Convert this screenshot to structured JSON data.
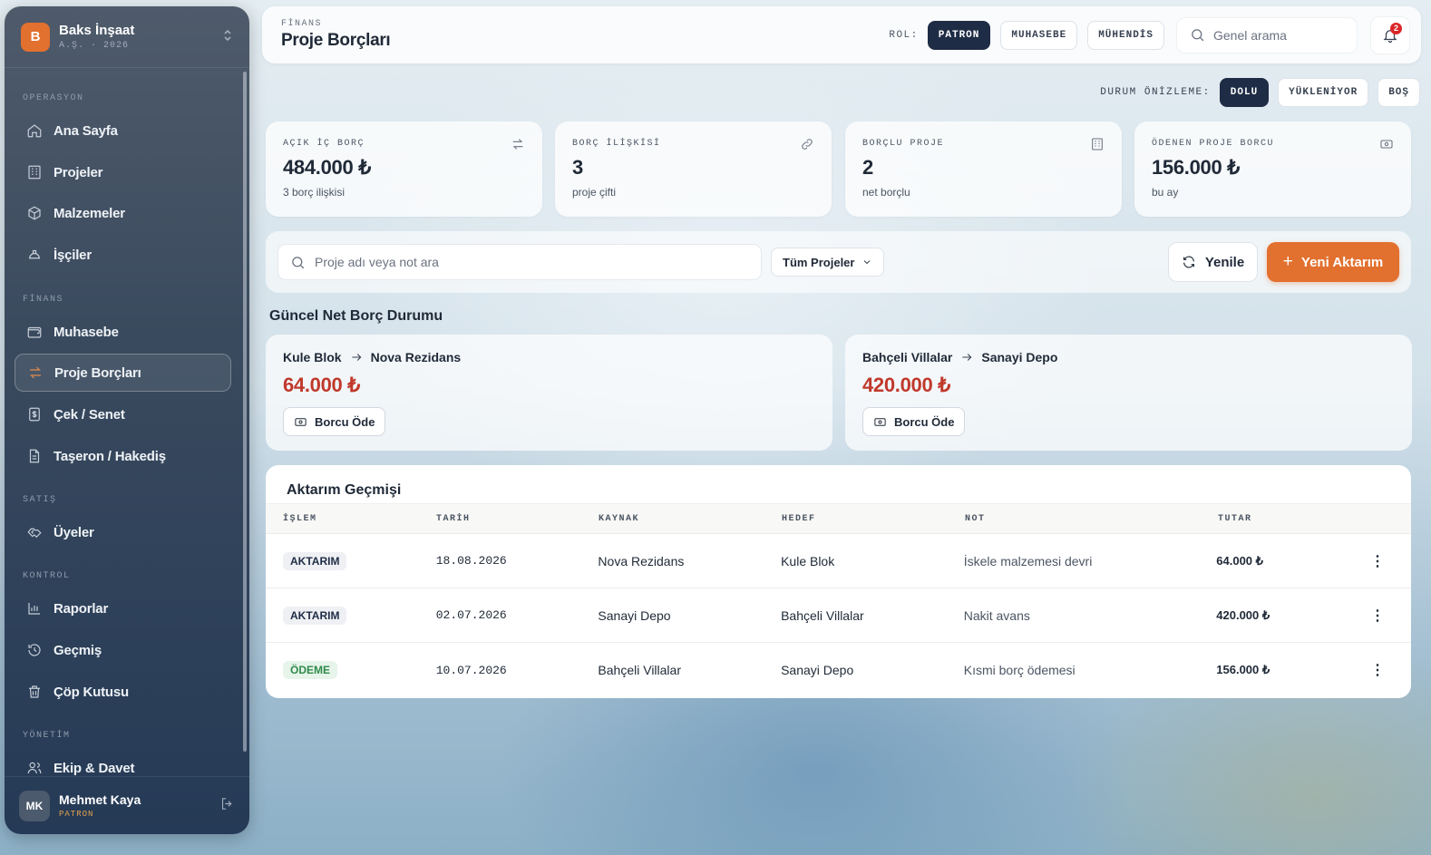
{
  "brand": {
    "initial": "B",
    "name": "Baks İnşaat",
    "sub": "A.Ş. · 2026"
  },
  "sidebar": {
    "sections": [
      {
        "title": "OPERASYON",
        "items": [
          {
            "label": "Ana Sayfa",
            "icon": "home-icon"
          },
          {
            "label": "Projeler",
            "icon": "building-icon"
          },
          {
            "label": "Malzemeler",
            "icon": "box-icon"
          },
          {
            "label": "İşçiler",
            "icon": "hardhat-icon"
          }
        ]
      },
      {
        "title": "FİNANS",
        "items": [
          {
            "label": "Muhasebe",
            "icon": "wallet-icon"
          },
          {
            "label": "Proje Borçları",
            "icon": "transfer-icon",
            "active": true
          },
          {
            "label": "Çek / Senet",
            "icon": "cheque-icon"
          },
          {
            "label": "Taşeron / Hakediş",
            "icon": "document-icon"
          }
        ]
      },
      {
        "title": "SATIŞ",
        "items": [
          {
            "label": "Üyeler",
            "icon": "handshake-icon"
          }
        ]
      },
      {
        "title": "KONTROL",
        "items": [
          {
            "label": "Raporlar",
            "icon": "chart-icon"
          },
          {
            "label": "Geçmiş",
            "icon": "history-icon"
          },
          {
            "label": "Çöp Kutusu",
            "icon": "trash-icon"
          }
        ]
      },
      {
        "title": "YÖNETİM",
        "items": [
          {
            "label": "Ekip & Davet",
            "icon": "users-icon"
          }
        ]
      }
    ]
  },
  "user": {
    "initials": "MK",
    "name": "Mehmet Kaya",
    "role": "PATRON"
  },
  "header": {
    "eyebrow": "FİNANS",
    "title": "Proje Borçları",
    "role_label": "ROL:",
    "roles": [
      "PATRON",
      "MUHASEBE",
      "MÜHENDİS"
    ],
    "search_placeholder": "Genel arama",
    "notification_count": "2"
  },
  "preview": {
    "label": "DURUM ÖNİZLEME:",
    "options": [
      "DOLU",
      "YÜKLENİYOR",
      "BOŞ"
    ]
  },
  "stats": [
    {
      "label": "AÇIK İÇ BORÇ",
      "value": "484.000 ₺",
      "sub": "3 borç ilişkisi",
      "icon": "transfer-icon"
    },
    {
      "label": "BORÇ İLİŞKİSİ",
      "value": "3",
      "sub": "proje çifti",
      "icon": "link-icon"
    },
    {
      "label": "BORÇLU PROJE",
      "value": "2",
      "sub": "net borçlu",
      "icon": "building-icon"
    },
    {
      "label": "ÖDENEN PROJE BORCU",
      "value": "156.000 ₺",
      "sub": "bu ay",
      "icon": "cash-icon"
    }
  ],
  "toolbar": {
    "search_placeholder": "Proje adı veya not ara",
    "filter": "Tüm Projeler",
    "refresh": "Yenile",
    "new_transfer": "Yeni Aktarım"
  },
  "net_debts": {
    "title": "Güncel Net Borç Durumu",
    "pay_label": "Borcu Öde",
    "items": [
      {
        "from": "Kule Blok",
        "to": "Nova Rezidans",
        "amount": "64.000 ₺"
      },
      {
        "from": "Bahçeli Villalar",
        "to": "Sanayi Depo",
        "amount": "420.000 ₺"
      }
    ]
  },
  "history": {
    "title": "Aktarım Geçmişi",
    "columns": [
      "İŞLEM",
      "TARİH",
      "KAYNAK",
      "HEDEF",
      "NOT",
      "TUTAR"
    ],
    "rows": [
      {
        "type": "AKTARIM",
        "kind": "transfer",
        "date": "18.08.2026",
        "source": "Nova Rezidans",
        "target": "Kule Blok",
        "note": "İskele malzemesi devri",
        "amount": "64.000 ₺"
      },
      {
        "type": "AKTARIM",
        "kind": "transfer",
        "date": "02.07.2026",
        "source": "Sanayi Depo",
        "target": "Bahçeli Villalar",
        "note": "Nakit avans",
        "amount": "420.000 ₺"
      },
      {
        "type": "ÖDEME",
        "kind": "payment",
        "date": "10.07.2026",
        "source": "Bahçeli Villalar",
        "target": "Sanayi Depo",
        "note": "Kısmi borç ödemesi",
        "amount": "156.000 ₺"
      }
    ]
  }
}
